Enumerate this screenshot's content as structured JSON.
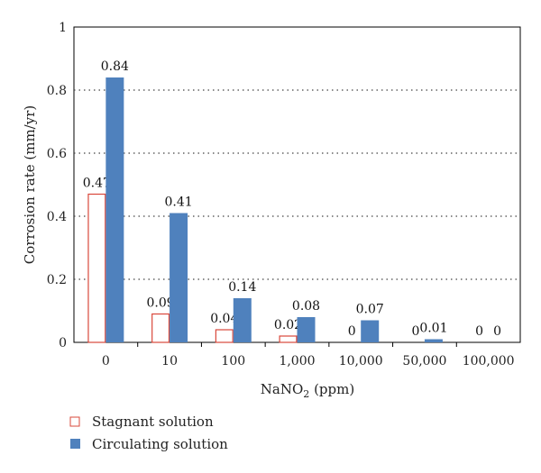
{
  "chart_data": {
    "type": "bar",
    "categories": [
      "0",
      "10",
      "100",
      "1,000",
      "10,000",
      "50,000",
      "100,000"
    ],
    "series": [
      {
        "name": "Stagnant solution",
        "values": [
          0.47,
          0.09,
          0.04,
          0.02,
          0,
          0,
          0
        ],
        "labels": [
          "0.47",
          "0.09",
          "0.04",
          "0.02",
          "0",
          "0",
          "0"
        ],
        "style": "outline",
        "color": "#d9483b"
      },
      {
        "name": "Circulating solution",
        "values": [
          0.84,
          0.41,
          0.14,
          0.08,
          0.07,
          0.01,
          0
        ],
        "labels": [
          "0.84",
          "0.41",
          "0.14",
          "0.08",
          "0.07",
          "0.01",
          "0"
        ],
        "style": "filled",
        "color": "#4f81bd"
      }
    ],
    "y_ticks": [
      "0",
      "0.2",
      "0.4",
      "0.6",
      "0.8",
      "1"
    ],
    "ylim": [
      0,
      1
    ],
    "ylabel": "Corrosion rate (mm/yr)",
    "xlabel": {
      "main": "NaNO",
      "subscript": "2",
      "suffix": " (ppm)"
    },
    "grid": "horizontal dotted",
    "legend_position": "bottom-left"
  }
}
